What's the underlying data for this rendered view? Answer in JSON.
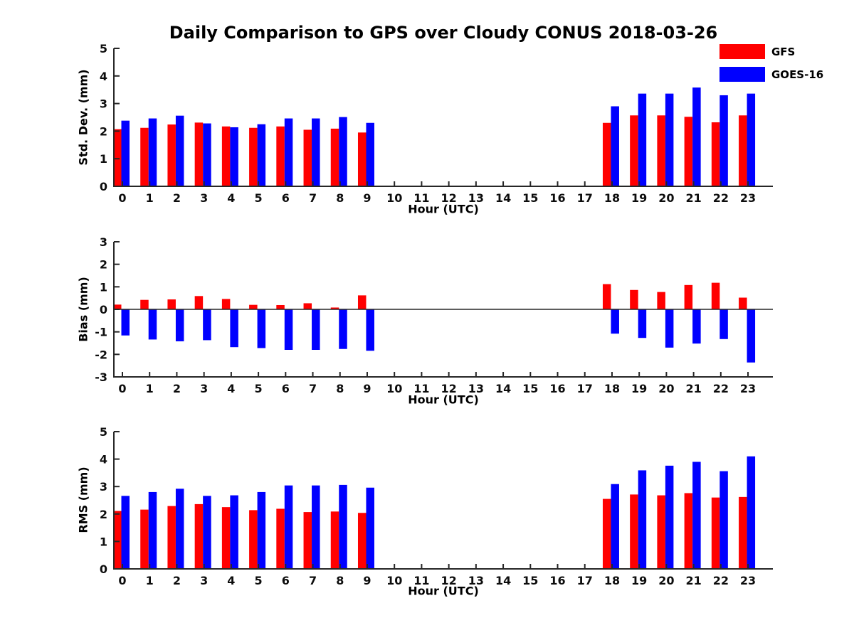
{
  "title": "Daily Comparison to GPS over Cloudy CONUS 2018-03-26",
  "legend": {
    "position": "top-right",
    "items": [
      {
        "label": "GFS",
        "color": "#ff0000"
      },
      {
        "label": "GOES-16",
        "color": "#0000ff"
      }
    ]
  },
  "chart_data": [
    {
      "type": "bar",
      "ylabel": "Std. Dev. (mm)",
      "xlabel": "Hour (UTC)",
      "ylim": [
        0,
        5
      ],
      "yticks": [
        0,
        1,
        2,
        3,
        4,
        5
      ],
      "grid": false,
      "categories": [
        "0",
        "1",
        "2",
        "3",
        "4",
        "5",
        "6",
        "7",
        "8",
        "9",
        "10",
        "11",
        "12",
        "13",
        "14",
        "15",
        "16",
        "17",
        "18",
        "19",
        "20",
        "21",
        "22",
        "23"
      ],
      "series": [
        {
          "name": "GFS",
          "color": "#ff0000",
          "values": [
            2.07,
            2.12,
            2.24,
            2.31,
            2.17,
            2.12,
            2.17,
            2.05,
            2.09,
            1.95,
            null,
            null,
            null,
            null,
            null,
            null,
            null,
            null,
            2.3,
            2.57,
            2.57,
            2.52,
            2.32,
            2.57
          ]
        },
        {
          "name": "GOES-16",
          "color": "#0000ff",
          "values": [
            2.38,
            2.46,
            2.56,
            2.28,
            2.14,
            2.25,
            2.46,
            2.46,
            2.51,
            2.3,
            null,
            null,
            null,
            null,
            null,
            null,
            null,
            null,
            2.9,
            3.36,
            3.36,
            3.58,
            3.3,
            3.36
          ]
        }
      ]
    },
    {
      "type": "bar",
      "ylabel": "Bias (mm)",
      "xlabel": "Hour (UTC)",
      "ylim": [
        -3,
        3
      ],
      "yticks": [
        -3,
        -2,
        -1,
        0,
        1,
        2,
        3
      ],
      "grid": false,
      "zero_line": true,
      "categories": [
        "0",
        "1",
        "2",
        "3",
        "4",
        "5",
        "6",
        "7",
        "8",
        "9",
        "10",
        "11",
        "12",
        "13",
        "14",
        "15",
        "16",
        "17",
        "18",
        "19",
        "20",
        "21",
        "22",
        "23"
      ],
      "series": [
        {
          "name": "GFS",
          "color": "#ff0000",
          "values": [
            0.21,
            0.42,
            0.44,
            0.59,
            0.46,
            0.2,
            0.19,
            0.27,
            0.08,
            0.62,
            null,
            null,
            null,
            null,
            null,
            null,
            null,
            null,
            1.12,
            0.86,
            0.77,
            1.08,
            1.18,
            0.52
          ]
        },
        {
          "name": "GOES-16",
          "color": "#0000ff",
          "values": [
            -1.16,
            -1.34,
            -1.42,
            -1.37,
            -1.68,
            -1.72,
            -1.8,
            -1.8,
            -1.76,
            -1.84,
            null,
            null,
            null,
            null,
            null,
            null,
            null,
            null,
            -1.08,
            -1.27,
            -1.7,
            -1.52,
            -1.32,
            -2.36
          ]
        }
      ]
    },
    {
      "type": "bar",
      "ylabel": "RMS (mm)",
      "xlabel": "Hour (UTC)",
      "ylim": [
        0,
        5
      ],
      "yticks": [
        0,
        1,
        2,
        3,
        4,
        5
      ],
      "grid": false,
      "categories": [
        "0",
        "1",
        "2",
        "3",
        "4",
        "5",
        "6",
        "7",
        "8",
        "9",
        "10",
        "11",
        "12",
        "13",
        "14",
        "15",
        "16",
        "17",
        "18",
        "19",
        "20",
        "21",
        "22",
        "23"
      ],
      "series": [
        {
          "name": "GFS",
          "color": "#ff0000",
          "values": [
            2.11,
            2.16,
            2.29,
            2.36,
            2.25,
            2.14,
            2.19,
            2.07,
            2.09,
            2.04,
            null,
            null,
            null,
            null,
            null,
            null,
            null,
            null,
            2.55,
            2.71,
            2.68,
            2.76,
            2.6,
            2.62
          ]
        },
        {
          "name": "GOES-16",
          "color": "#0000ff",
          "values": [
            2.66,
            2.8,
            2.92,
            2.66,
            2.68,
            2.8,
            3.04,
            3.04,
            3.06,
            2.96,
            null,
            null,
            null,
            null,
            null,
            null,
            null,
            null,
            3.09,
            3.59,
            3.76,
            3.9,
            3.56,
            4.1
          ]
        }
      ]
    }
  ]
}
